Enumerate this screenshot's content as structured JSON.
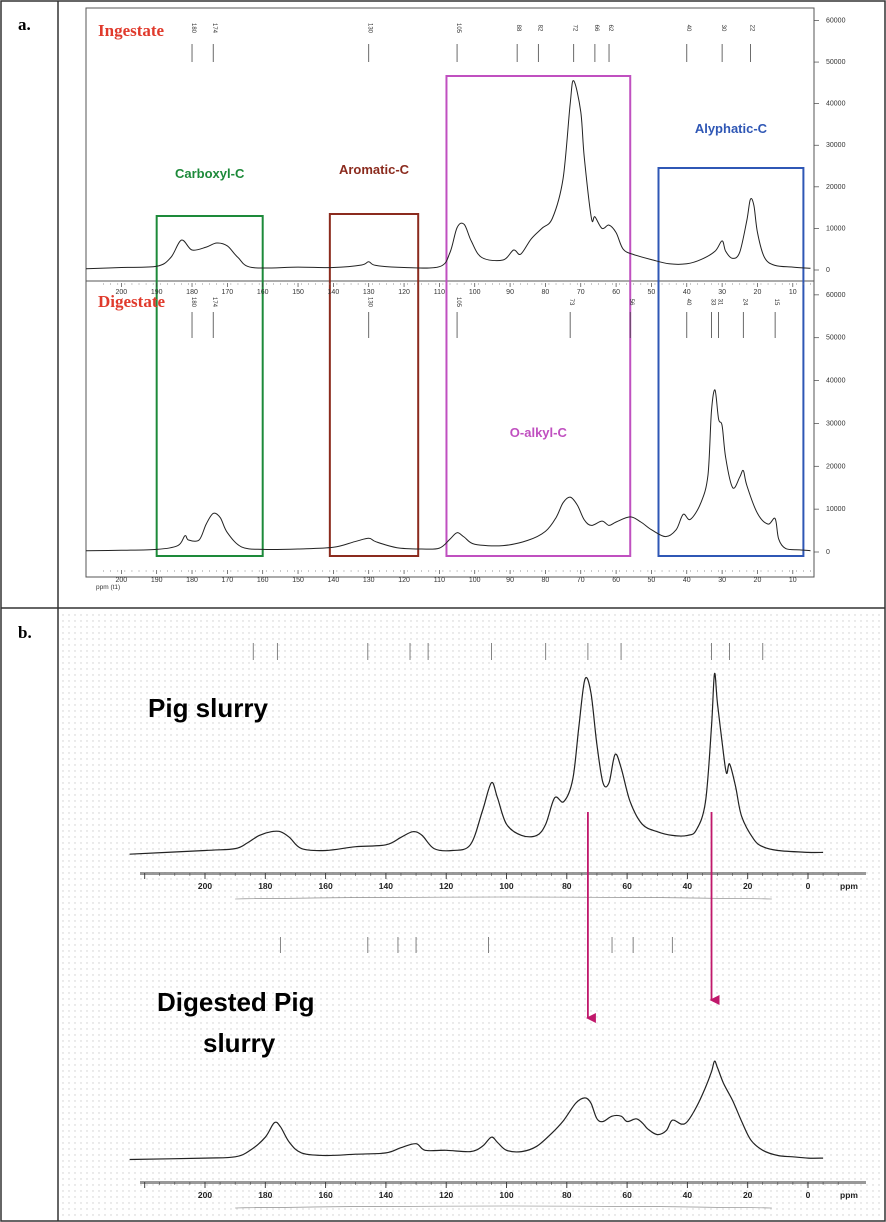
{
  "panels": {
    "a": {
      "label": "a.",
      "top_title": "Ingestate",
      "bottom_title": "Digestate",
      "axis_unit": "ppm (t1)"
    },
    "b": {
      "label": "b.",
      "top_title": "Pig slurry",
      "bottom_title_line1": "Digested Pig",
      "bottom_title_line2": "slurry",
      "axis_unit": "ppm"
    }
  },
  "regions": [
    {
      "name": "Carboxyl-C",
      "color": "#1d8a3a",
      "from": 190,
      "to": 160
    },
    {
      "name": "Aromatic-C",
      "color": "#8b2b1e",
      "from": 141,
      "to": 116
    },
    {
      "name": "O-alkyl-C",
      "color": "#c050c0",
      "from": 108,
      "to": 56
    },
    {
      "name": "Alyphatic-C",
      "color": "#2f57b5",
      "from": 48,
      "to": 7
    }
  ],
  "colors": {
    "panel_b_arrows": "#c0186b",
    "spectrum_line": "#222222",
    "dot_background": "#cccccc"
  },
  "chart_data": [
    {
      "type": "line",
      "panel": "a",
      "xlabel": "ppm (t1)",
      "xlim": [
        210,
        4
      ],
      "xticks": [
        200,
        190,
        180,
        170,
        160,
        150,
        140,
        130,
        120,
        110,
        100,
        90,
        80,
        70,
        60,
        50,
        40,
        30,
        20,
        10
      ],
      "yticks": [
        0,
        10000,
        20000,
        30000,
        40000,
        50000,
        60000
      ],
      "tick_labels": [
        "200",
        "190",
        "180",
        "170",
        "160",
        "150",
        "140",
        "130",
        "120",
        "110",
        "100",
        "90",
        "80",
        "70",
        "60",
        "50",
        "40",
        "30",
        "20",
        "10"
      ],
      "ytick_labels": [
        "0",
        "10000",
        "20000",
        "30000",
        "40000",
        "50000",
        "60000"
      ],
      "series": [
        {
          "name": "Ingestate",
          "ylim": [
            0,
            63000
          ],
          "peak_labels": [
            "180",
            "174",
            "130",
            "105",
            "88",
            "82",
            "72",
            "66",
            "62",
            "40",
            "30",
            "22"
          ],
          "points": [
            [
              210,
              300
            ],
            [
              200,
              600
            ],
            [
              190,
              900
            ],
            [
              186,
              3000
            ],
            [
              183,
              7200
            ],
            [
              180,
              4800
            ],
            [
              176,
              5500
            ],
            [
              173,
              6500
            ],
            [
              170,
              5800
            ],
            [
              167,
              3000
            ],
            [
              163,
              600
            ],
            [
              150,
              700
            ],
            [
              140,
              600
            ],
            [
              132,
              1200
            ],
            [
              130,
              2000
            ],
            [
              128,
              1100
            ],
            [
              120,
              600
            ],
            [
              110,
              800
            ],
            [
              107,
              4200
            ],
            [
              105,
              10200
            ],
            [
              103,
              11000
            ],
            [
              101,
              7000
            ],
            [
              98,
              3000
            ],
            [
              92,
              2400
            ],
            [
              89,
              4800
            ],
            [
              87,
              3800
            ],
            [
              84,
              7500
            ],
            [
              81,
              10000
            ],
            [
              78,
              12500
            ],
            [
              75,
              22000
            ],
            [
              73,
              40000
            ],
            [
              72,
              45500
            ],
            [
              70,
              38000
            ],
            [
              69,
              27000
            ],
            [
              67,
              12500
            ],
            [
              66,
              12800
            ],
            [
              64,
              10000
            ],
            [
              62,
              10800
            ],
            [
              60,
              9000
            ],
            [
              58,
              5000
            ],
            [
              55,
              3700
            ],
            [
              50,
              2500
            ],
            [
              45,
              1500
            ],
            [
              40,
              1500
            ],
            [
              36,
              2500
            ],
            [
              32,
              4500
            ],
            [
              30,
              7000
            ],
            [
              29,
              4500
            ],
            [
              27,
              2800
            ],
            [
              25,
              4300
            ],
            [
              23,
              12000
            ],
            [
              22,
              17000
            ],
            [
              21,
              15500
            ],
            [
              20,
              9000
            ],
            [
              18,
              3000
            ],
            [
              15,
              1100
            ],
            [
              10,
              700
            ],
            [
              5,
              400
            ]
          ]
        },
        {
          "name": "Digestate",
          "ylim": [
            0,
            63000
          ],
          "peak_labels": [
            "180",
            "174",
            "130",
            "105",
            "73",
            "56",
            "40",
            "33",
            "31",
            "24",
            "15"
          ],
          "points": [
            [
              210,
              300
            ],
            [
              200,
              400
            ],
            [
              190,
              600
            ],
            [
              184,
              1500
            ],
            [
              182,
              3800
            ],
            [
              181,
              2800
            ],
            [
              178,
              2800
            ],
            [
              176,
              6500
            ],
            [
              174,
              9000
            ],
            [
              172,
              8000
            ],
            [
              170,
              4500
            ],
            [
              166,
              1200
            ],
            [
              160,
              600
            ],
            [
              150,
              700
            ],
            [
              140,
              1100
            ],
            [
              134,
              2400
            ],
            [
              130,
              3200
            ],
            [
              128,
              2400
            ],
            [
              122,
              1000
            ],
            [
              115,
              700
            ],
            [
              110,
              900
            ],
            [
              107,
              3000
            ],
            [
              105,
              4500
            ],
            [
              103,
              3500
            ],
            [
              100,
              1800
            ],
            [
              92,
              1500
            ],
            [
              85,
              2700
            ],
            [
              80,
              4800
            ],
            [
              77,
              8000
            ],
            [
              75,
              11500
            ],
            [
              73,
              12800
            ],
            [
              71,
              11000
            ],
            [
              69,
              7500
            ],
            [
              67,
              6200
            ],
            [
              64,
              7200
            ],
            [
              62,
              6200
            ],
            [
              60,
              7000
            ],
            [
              56,
              8200
            ],
            [
              53,
              7000
            ],
            [
              50,
              5200
            ],
            [
              46,
              3600
            ],
            [
              43,
              5200
            ],
            [
              41,
              8800
            ],
            [
              39,
              7600
            ],
            [
              36,
              11500
            ],
            [
              34,
              18000
            ],
            [
              33,
              33000
            ],
            [
              32,
              37800
            ],
            [
              31,
              31000
            ],
            [
              30,
              29500
            ],
            [
              29,
              22000
            ],
            [
              27,
              15000
            ],
            [
              25,
              17500
            ],
            [
              24,
              19000
            ],
            [
              23,
              15500
            ],
            [
              20,
              9000
            ],
            [
              17,
              6500
            ],
            [
              15,
              7800
            ],
            [
              14,
              3000
            ],
            [
              12,
              800
            ],
            [
              8,
              500
            ],
            [
              5,
              300
            ]
          ]
        }
      ]
    },
    {
      "type": "line",
      "panel": "b",
      "xlabel": "ppm",
      "xlim": [
        225,
        -5
      ],
      "xticks": [
        200,
        180,
        160,
        140,
        120,
        100,
        80,
        60,
        40,
        20,
        0
      ],
      "tick_labels": [
        "200",
        "180",
        "160",
        "140",
        "120",
        "100",
        "80",
        "60",
        "40",
        "20",
        "0"
      ],
      "series": [
        {
          "name": "Pig slurry",
          "ylim": [
            0,
            110
          ],
          "points": [
            [
              225,
              2
            ],
            [
              200,
              4
            ],
            [
              190,
              5
            ],
            [
              186,
              8
            ],
            [
              182,
              12
            ],
            [
              178,
              14
            ],
            [
              175,
              14
            ],
            [
              172,
              11
            ],
            [
              168,
              5
            ],
            [
              160,
              4
            ],
            [
              150,
              6
            ],
            [
              140,
              7
            ],
            [
              135,
              11
            ],
            [
              131,
              14
            ],
            [
              128,
              12
            ],
            [
              124,
              5
            ],
            [
              118,
              4
            ],
            [
              112,
              7
            ],
            [
              108,
              25
            ],
            [
              105,
              40
            ],
            [
              103,
              32
            ],
            [
              100,
              18
            ],
            [
              95,
              12
            ],
            [
              90,
              12
            ],
            [
              87,
              18
            ],
            [
              84,
              32
            ],
            [
              81,
              30
            ],
            [
              78,
              42
            ],
            [
              76,
              70
            ],
            [
              74,
              95
            ],
            [
              72,
              88
            ],
            [
              70,
              60
            ],
            [
              68,
              40
            ],
            [
              66,
              40
            ],
            [
              64,
              55
            ],
            [
              62,
              48
            ],
            [
              59,
              30
            ],
            [
              55,
              18
            ],
            [
              50,
              14
            ],
            [
              45,
              12
            ],
            [
              40,
              12
            ],
            [
              37,
              15
            ],
            [
              34,
              30
            ],
            [
              32,
              70
            ],
            [
              31,
              98
            ],
            [
              30,
              82
            ],
            [
              28,
              55
            ],
            [
              27,
              45
            ],
            [
              26,
              50
            ],
            [
              24,
              38
            ],
            [
              22,
              22
            ],
            [
              18,
              10
            ],
            [
              15,
              6
            ],
            [
              10,
              4
            ],
            [
              0,
              3
            ],
            [
              -5,
              3
            ]
          ]
        },
        {
          "name": "Digested Pig slurry",
          "ylim": [
            0,
            110
          ],
          "points": [
            [
              225,
              5
            ],
            [
              200,
              6
            ],
            [
              190,
              7
            ],
            [
              185,
              12
            ],
            [
              180,
              22
            ],
            [
              177,
              33
            ],
            [
              175,
              30
            ],
            [
              172,
              18
            ],
            [
              168,
              10
            ],
            [
              160,
              8
            ],
            [
              150,
              9
            ],
            [
              140,
              10
            ],
            [
              135,
              14
            ],
            [
              130,
              17
            ],
            [
              127,
              12
            ],
            [
              120,
              12
            ],
            [
              112,
              11
            ],
            [
              108,
              15
            ],
            [
              105,
              22
            ],
            [
              103,
              18
            ],
            [
              100,
              12
            ],
            [
              95,
              11
            ],
            [
              90,
              15
            ],
            [
              85,
              25
            ],
            [
              81,
              35
            ],
            [
              77,
              48
            ],
            [
              74,
              52
            ],
            [
              72,
              48
            ],
            [
              70,
              36
            ],
            [
              68,
              34
            ],
            [
              65,
              38
            ],
            [
              62,
              38
            ],
            [
              60,
              34
            ],
            [
              57,
              36
            ],
            [
              55,
              33
            ],
            [
              53,
              28
            ],
            [
              50,
              24
            ],
            [
              47,
              27
            ],
            [
              45,
              35
            ],
            [
              42,
              32
            ],
            [
              40,
              34
            ],
            [
              37,
              45
            ],
            [
              34,
              60
            ],
            [
              32,
              72
            ],
            [
              31,
              80
            ],
            [
              30,
              75
            ],
            [
              28,
              63
            ],
            [
              25,
              50
            ],
            [
              22,
              34
            ],
            [
              19,
              20
            ],
            [
              15,
              12
            ],
            [
              10,
              8
            ],
            [
              5,
              7
            ],
            [
              0,
              6
            ],
            [
              -5,
              6
            ]
          ]
        }
      ],
      "arrows_ppm": [
        73,
        32
      ]
    }
  ]
}
